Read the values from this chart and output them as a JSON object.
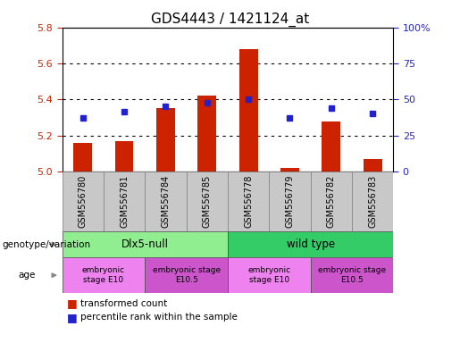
{
  "title": "GDS4443 / 1421124_at",
  "samples": [
    "GSM556780",
    "GSM556781",
    "GSM556784",
    "GSM556785",
    "GSM556778",
    "GSM556779",
    "GSM556782",
    "GSM556783"
  ],
  "bar_values": [
    5.16,
    5.17,
    5.35,
    5.42,
    5.68,
    5.02,
    5.28,
    5.07
  ],
  "bar_base": 5.0,
  "dot_values": [
    5.3,
    5.33,
    5.36,
    5.38,
    5.4,
    5.3,
    5.35,
    5.32
  ],
  "bar_color": "#cc2200",
  "dot_color": "#2222cc",
  "ylim_left": [
    5.0,
    5.8
  ],
  "ylim_right": [
    0,
    100
  ],
  "yticks_left": [
    5.0,
    5.2,
    5.4,
    5.6,
    5.8
  ],
  "yticks_right": [
    0,
    25,
    50,
    75,
    100
  ],
  "ytick_labels_right": [
    "0",
    "25",
    "50",
    "75",
    "100%"
  ],
  "gridlines": [
    5.2,
    5.4,
    5.6
  ],
  "genotype_groups": [
    {
      "label": "Dlx5-null",
      "start": 0,
      "end": 4,
      "color": "#90ee90"
    },
    {
      "label": "wild type",
      "start": 4,
      "end": 8,
      "color": "#33cc66"
    }
  ],
  "age_groups": [
    {
      "label": "embryonic\nstage E10",
      "start": 0,
      "end": 2,
      "color": "#ee82ee"
    },
    {
      "label": "embryonic stage\nE10.5",
      "start": 2,
      "end": 4,
      "color": "#cc55cc"
    },
    {
      "label": "embryonic\nstage E10",
      "start": 4,
      "end": 6,
      "color": "#ee82ee"
    },
    {
      "label": "embryonic stage\nE10.5",
      "start": 6,
      "end": 8,
      "color": "#cc55cc"
    }
  ],
  "legend_red_label": "transformed count",
  "legend_blue_label": "percentile rank within the sample",
  "genotype_label": "genotype/variation",
  "age_label": "age",
  "tick_bg_color": "#c8c8c8",
  "tick_border_color": "#888888"
}
